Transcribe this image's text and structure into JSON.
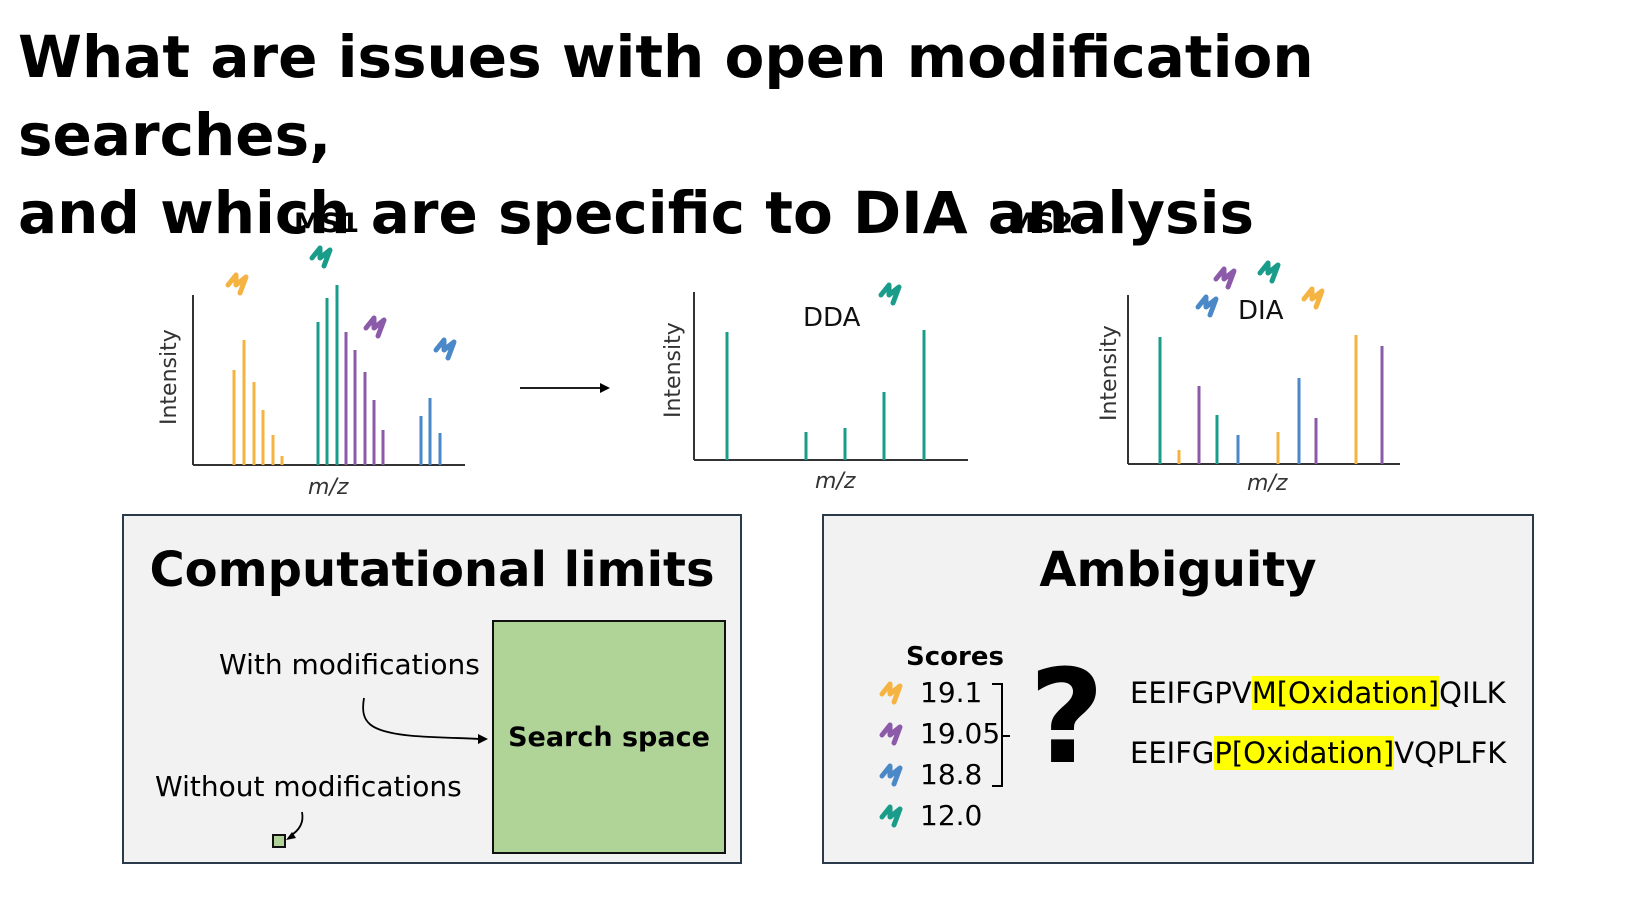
{
  "title_line1": "What are issues with open modification searches,",
  "title_line2": "and which are specific to DIA analysis",
  "ms1_label": "MS1",
  "ms2_label": "MS2",
  "ms1_plot": {
    "ylabel": "Intensity",
    "xlabel": "m/z"
  },
  "dda_plot": {
    "label": "DDA",
    "ylabel": "Intensity",
    "xlabel": "m/z"
  },
  "dia_plot": {
    "label": "DIA",
    "ylabel": "Intensity",
    "xlabel": "m/z"
  },
  "colors": {
    "orange": "#f5b342",
    "teal": "#1a9c8a",
    "purple": "#8b5aa8",
    "blue": "#4a88c8"
  },
  "computational": {
    "title": "Computational limits",
    "with_mods": "With modifications",
    "without_mods": "Without modifications",
    "search_space": "Search space"
  },
  "ambiguity": {
    "title": "Ambiguity",
    "scores_header": "Scores",
    "scores": [
      {
        "value": "19.1",
        "color": "orange"
      },
      {
        "value": "19.05",
        "color": "purple"
      },
      {
        "value": "18.8",
        "color": "blue"
      },
      {
        "value": "12.0",
        "color": "teal"
      }
    ],
    "question": "?",
    "seq1_pre": "EEIFGPV",
    "seq1_hl": "M[Oxidation]",
    "seq1_post": "QILK",
    "seq2_pre": "EEIFG",
    "seq2_hl": "P[Oxidation]",
    "seq2_post": "VQPLFK"
  }
}
